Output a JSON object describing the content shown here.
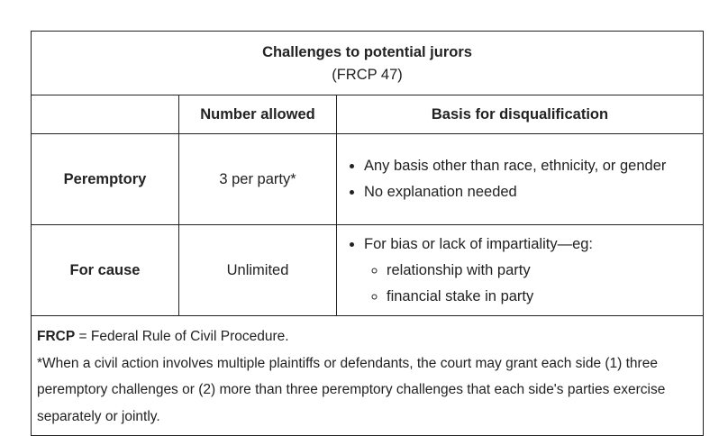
{
  "table": {
    "title": "Challenges to potential jurors",
    "subtitle": "(FRCP 47)",
    "headers": {
      "blank": "",
      "number_allowed": "Number allowed",
      "basis": "Basis for disqualification"
    },
    "rows": [
      {
        "label": "Peremptory",
        "number": "3 per party*",
        "basis": [
          "Any basis other than race, ethnicity, or gender",
          "No explanation needed"
        ]
      },
      {
        "label": "For cause",
        "number": "Unlimited",
        "basis_main": "For bias or lack of impartiality—eg:",
        "basis_sub": [
          "relationship with party",
          "financial stake in party"
        ]
      }
    ],
    "notes": {
      "abbr": "FRCP",
      "abbr_def": " = Federal Rule of Civil Procedure.",
      "footnote": "*When a civil action involves multiple plaintiffs or defendants, the court may grant each side (1) three peremptory challenges or (2) more than three peremptory challenges that each side's parties exercise separately or jointly."
    }
  }
}
